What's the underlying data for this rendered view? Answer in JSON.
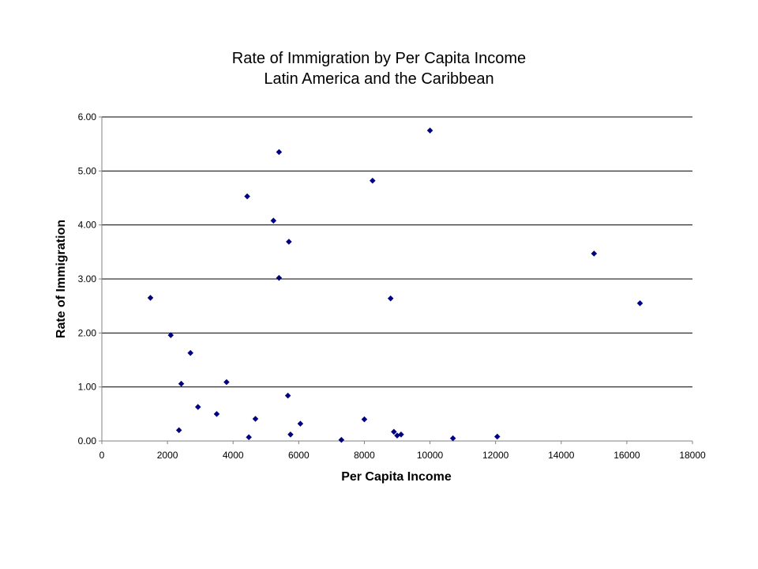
{
  "chart_data": {
    "type": "scatter",
    "title": "Rate of Immigration by Per Capita Income",
    "subtitle": "Latin America and the Caribbean",
    "xlabel": "Per Capita Income",
    "ylabel": "Rate of Immigration",
    "xlim": [
      0,
      18000
    ],
    "ylim": [
      0,
      6
    ],
    "x_ticks": [
      "0",
      "2000",
      "4000",
      "6000",
      "8000",
      "10000",
      "12000",
      "14000",
      "16000",
      "18000"
    ],
    "y_ticks": [
      "0.00",
      "1.00",
      "2.00",
      "3.00",
      "4.00",
      "5.00",
      "6.00"
    ],
    "x_tick_values": [
      0,
      2000,
      4000,
      6000,
      8000,
      10000,
      12000,
      14000,
      16000,
      18000
    ],
    "y_tick_values": [
      0,
      1,
      2,
      3,
      4,
      5,
      6
    ],
    "grid": "horizontal",
    "legend": "none",
    "marker_color": "#000080",
    "series": [
      {
        "points": [
          [
            1480,
            2.65
          ],
          [
            2100,
            1.96
          ],
          [
            2350,
            0.2
          ],
          [
            2420,
            1.06
          ],
          [
            2700,
            1.63
          ],
          [
            2930,
            0.63
          ],
          [
            3500,
            0.5
          ],
          [
            3800,
            1.09
          ],
          [
            4430,
            4.53
          ],
          [
            4480,
            0.07
          ],
          [
            4680,
            0.41
          ],
          [
            5230,
            4.08
          ],
          [
            5400,
            5.35
          ],
          [
            5400,
            3.02
          ],
          [
            5670,
            0.84
          ],
          [
            5700,
            3.69
          ],
          [
            5750,
            0.12
          ],
          [
            6050,
            0.32
          ],
          [
            7300,
            0.02
          ],
          [
            8000,
            0.4
          ],
          [
            8250,
            4.82
          ],
          [
            8800,
            2.64
          ],
          [
            8900,
            0.17
          ],
          [
            9000,
            0.1
          ],
          [
            9120,
            0.12
          ],
          [
            10000,
            5.75
          ],
          [
            10700,
            0.05
          ],
          [
            12050,
            0.08
          ],
          [
            15000,
            3.47
          ],
          [
            16400,
            2.55
          ]
        ]
      }
    ]
  }
}
